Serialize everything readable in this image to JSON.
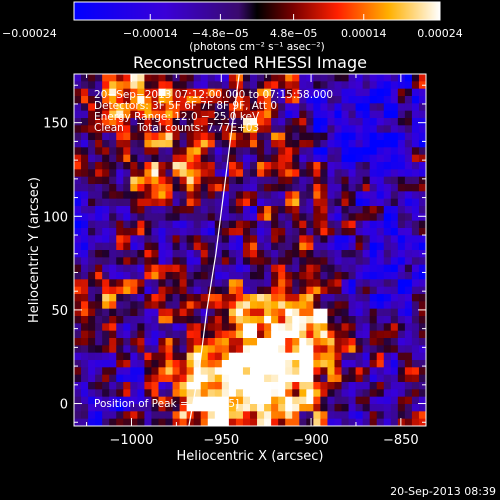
{
  "chart_data": {
    "type": "heatmap",
    "title": "Reconstructed RHESSI Image",
    "xlabel": "Heliocentric X (arcsec)",
    "ylabel": "Heliocentric Y (arcsec)",
    "xlim": [
      -1032,
      -836
    ],
    "ylim": [
      -12,
      176
    ],
    "x_ticks": [
      -1000,
      -950,
      -900,
      -850
    ],
    "x_tick_labels": [
      "−1000",
      "−950",
      "−900",
      "−850"
    ],
    "y_ticks": [
      0,
      50,
      100,
      150
    ],
    "y_tick_labels": [
      "0",
      "50",
      "100",
      "150"
    ],
    "colorbar": {
      "ticks": [
        -0.00024,
        -0.00014,
        -4.8e-05,
        4.8e-05,
        0.00014,
        0.00024
      ],
      "tick_labels": [
        "−0.00024",
        "−0.00014",
        "−4.8e−05",
        "4.8e−05",
        "0.00014",
        "0.00024"
      ],
      "unit_label": "(photons cm⁻² s⁻¹ asec⁻²)",
      "range": [
        -0.00024,
        0.00024
      ]
    },
    "annotations": [
      "20−Sep−2013 07:12:00.000 to 07:15:58.000",
      "Detectors: 3F 5F 6F 7F 8F 9F, Att 0",
      "Energy Range: 12.0 − 25.0 keV",
      "Clean    Total counts: 7.77E+03"
    ],
    "peak_label": "Position of Peak = [−917,5]",
    "peak": [
      -917,
      5
    ],
    "limb_points": [
      [
        -968,
        -12
      ],
      [
        -962,
        20
      ],
      [
        -958,
        50
      ],
      [
        -953,
        80
      ],
      [
        -949,
        110
      ],
      [
        -945,
        140
      ],
      [
        -940,
        176
      ]
    ],
    "grid_nx": 50,
    "grid_ny": 48,
    "blobs": [
      {
        "x": -923,
        "y": 18,
        "amp": 1.05,
        "s": 38
      },
      {
        "x": -955,
        "y": 5,
        "amp": 0.7,
        "s": 28
      },
      {
        "x": -905,
        "y": 40,
        "amp": 0.55,
        "s": 24
      },
      {
        "x": -1000,
        "y": 160,
        "amp": 0.55,
        "s": 30
      },
      {
        "x": -975,
        "y": 125,
        "amp": 0.45,
        "s": 22
      },
      {
        "x": -930,
        "y": 155,
        "amp": 0.4,
        "s": 22
      },
      {
        "x": -905,
        "y": 110,
        "amp": 0.35,
        "s": 18
      },
      {
        "x": -1015,
        "y": 55,
        "amp": 0.3,
        "s": 18
      },
      {
        "x": -870,
        "y": 150,
        "amp": -0.75,
        "s": 28
      },
      {
        "x": -860,
        "y": 70,
        "amp": -0.6,
        "s": 26
      },
      {
        "x": -1010,
        "y": 5,
        "amp": -0.3,
        "s": 22
      },
      {
        "x": -875,
        "y": 10,
        "amp": -0.4,
        "s": 20
      },
      {
        "x": -1020,
        "y": 100,
        "amp": -0.3,
        "s": 20
      }
    ]
  },
  "footer": {
    "timestamp": "20-Sep-2013 08:39"
  }
}
